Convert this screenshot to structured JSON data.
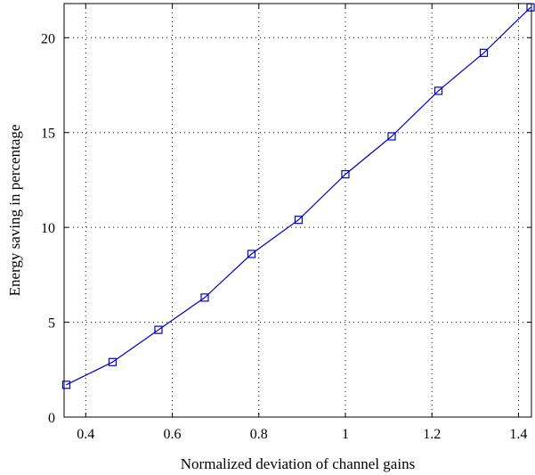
{
  "chart_data": {
    "type": "line",
    "title": "",
    "xlabel": "Normalized deviation of channel gains",
    "ylabel": "Energy saving in percentage",
    "xlim": [
      0.35,
      1.43
    ],
    "ylim": [
      0,
      21.8
    ],
    "xticks": [
      0.4,
      0.6,
      0.8,
      1,
      1.2,
      1.4
    ],
    "xtick_labels": [
      "0.4",
      "0.6",
      "0.8",
      "1",
      "1.2",
      "1.4"
    ],
    "yticks": [
      0,
      5,
      10,
      15,
      20
    ],
    "ytick_labels": [
      "0",
      "5",
      "10",
      "15",
      "20"
    ],
    "grid": true,
    "grid_style": "dotted",
    "legend": "none",
    "series": [
      {
        "marker": "square",
        "color": "#0000cc",
        "x": [
          0.355,
          0.462,
          0.568,
          0.675,
          0.783,
          0.892,
          1.0,
          1.107,
          1.215,
          1.32,
          1.428
        ],
        "y": [
          1.7,
          2.9,
          4.6,
          6.3,
          8.6,
          10.4,
          12.8,
          14.8,
          17.2,
          19.2,
          21.6
        ]
      }
    ]
  }
}
